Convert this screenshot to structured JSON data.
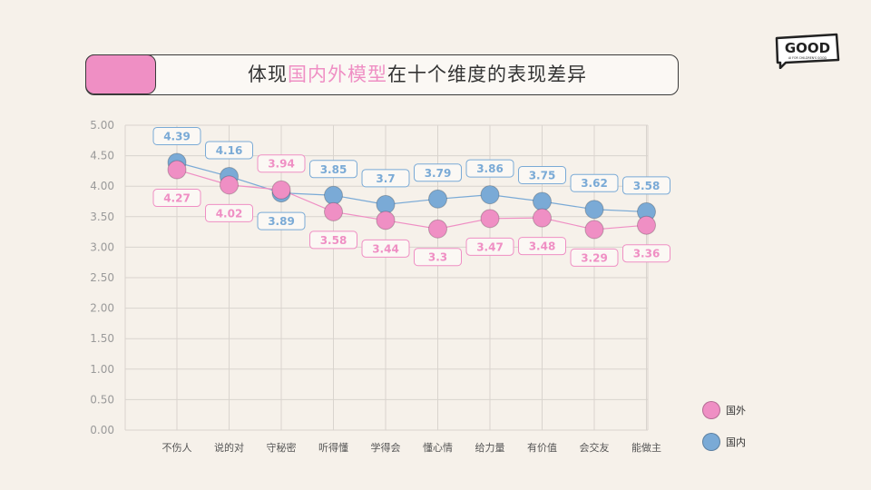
{
  "title": {
    "prefix": "体现",
    "highlight": "国内外模型",
    "suffix": "在十个维度的表现差异"
  },
  "logo": {
    "text": "GOOD",
    "subtext": "AI FOR CHILDREN'S GOOD"
  },
  "colors": {
    "foreign": "#ef8fc4",
    "domestic": "#7aaad6",
    "accent": "#ef8fc4",
    "grid": "#d9d4ce",
    "background": "#f6f1ea"
  },
  "legend": [
    {
      "name": "国外",
      "color": "#ef8fc4"
    },
    {
      "name": "国内",
      "color": "#7aaad6"
    }
  ],
  "chart_data": {
    "type": "line",
    "categories": [
      "不伤人",
      "说的对",
      "守秘密",
      "听得懂",
      "学得会",
      "懂心情",
      "给力量",
      "有价值",
      "会交友",
      "能做主"
    ],
    "series": [
      {
        "name": "国外",
        "values": [
          4.27,
          4.02,
          3.94,
          3.58,
          3.44,
          3.3,
          3.47,
          3.48,
          3.29,
          3.36
        ]
      },
      {
        "name": "国内",
        "values": [
          4.39,
          4.16,
          3.89,
          3.85,
          3.7,
          3.79,
          3.86,
          3.75,
          3.62,
          3.58
        ]
      }
    ],
    "y_ticks": [
      "0.00",
      "0.50",
      "1.00",
      "1.50",
      "2.00",
      "2.50",
      "3.00",
      "3.50",
      "4.00",
      "4.50",
      "5.00"
    ],
    "ylim": [
      0,
      5
    ],
    "grid": true,
    "legend_position": "bottom-right"
  }
}
